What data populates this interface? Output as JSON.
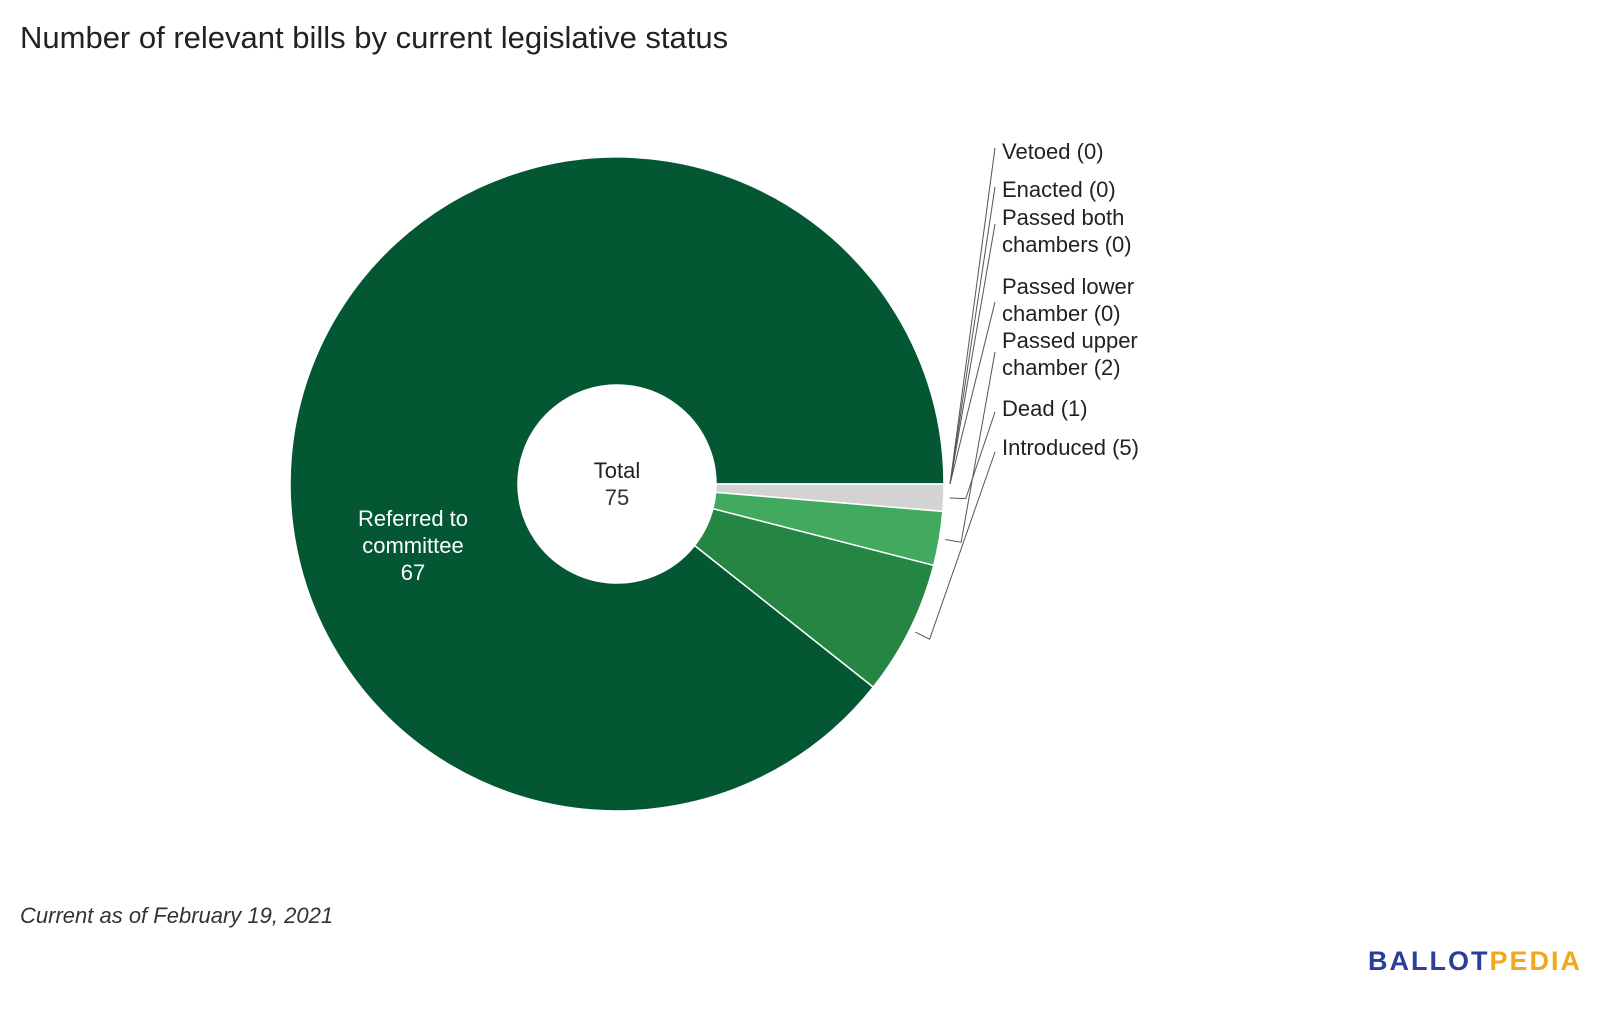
{
  "title": "Number of relevant bills by current legislative status",
  "footnote": "Current as of February 19, 2021",
  "logo": {
    "part1": "BALLOT",
    "part2": "PEDIA"
  },
  "chart_data": {
    "type": "pie",
    "donut": true,
    "center_label": "Total",
    "center_value": "75",
    "slices": [
      {
        "label": "Referred to committee",
        "value": 67,
        "color": "#035733",
        "inside_label": [
          "Referred to",
          "committee"
        ],
        "inside_value": "67"
      },
      {
        "label": "Introduced",
        "value": 5,
        "color": "#258543",
        "callout": [
          "Introduced (5)"
        ]
      },
      {
        "label": "Passed upper chamber",
        "value": 2,
        "color": "#42aa5f",
        "callout": [
          "Passed upper",
          "chamber (2)"
        ]
      },
      {
        "label": "Dead",
        "value": 1,
        "color": "#d3d3d3",
        "callout": [
          "Dead (1)"
        ]
      },
      {
        "label": "Passed lower chamber",
        "value": 0,
        "color": "#9e9e9e",
        "callout": [
          "Passed lower",
          "chamber (0)"
        ]
      },
      {
        "label": "Passed both chambers",
        "value": 0,
        "color": "#9e9e9e",
        "callout": [
          "Passed both",
          "chambers (0)"
        ]
      },
      {
        "label": "Enacted",
        "value": 0,
        "color": "#9e9e9e",
        "callout": [
          "Enacted (0)"
        ]
      },
      {
        "label": "Vetoed",
        "value": 0,
        "color": "#9e9e9e",
        "callout": [
          "Vetoed (0)"
        ]
      }
    ]
  }
}
